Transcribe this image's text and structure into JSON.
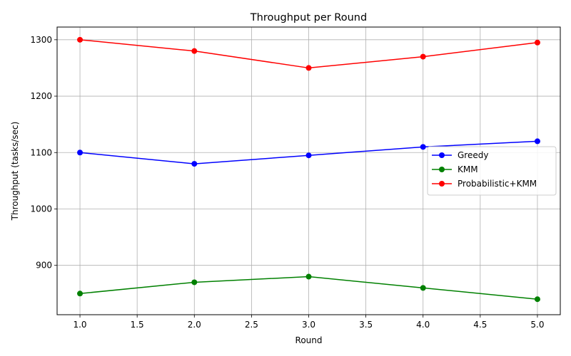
{
  "chart_data": {
    "type": "line",
    "title": "Throughput per Round",
    "xlabel": "Round",
    "ylabel": "Throughput (tasks/sec)",
    "x": [
      1,
      2,
      3,
      4,
      5
    ],
    "xlim": [
      0.8,
      5.2
    ],
    "ylim": [
      812.5,
      1322.5
    ],
    "xticks": [
      1.0,
      1.5,
      2.0,
      2.5,
      3.0,
      3.5,
      4.0,
      4.5,
      5.0
    ],
    "xtick_labels": [
      "1.0",
      "1.5",
      "2.0",
      "2.5",
      "3.0",
      "3.5",
      "4.0",
      "4.5",
      "5.0"
    ],
    "yticks": [
      900,
      1000,
      1100,
      1200,
      1300
    ],
    "ytick_labels": [
      "900",
      "1000",
      "1100",
      "1200",
      "1300"
    ],
    "grid": true,
    "legend_position": "center-right",
    "series": [
      {
        "name": "Greedy",
        "color": "#0000ff",
        "marker": "circle",
        "values": [
          1100,
          1080,
          1095,
          1110,
          1120
        ]
      },
      {
        "name": "KMM",
        "color": "#008000",
        "marker": "circle",
        "values": [
          850,
          870,
          880,
          860,
          840
        ]
      },
      {
        "name": "Probabilistic+KMM",
        "color": "#ff0000",
        "marker": "circle",
        "values": [
          1300,
          1280,
          1250,
          1270,
          1295
        ]
      }
    ]
  }
}
